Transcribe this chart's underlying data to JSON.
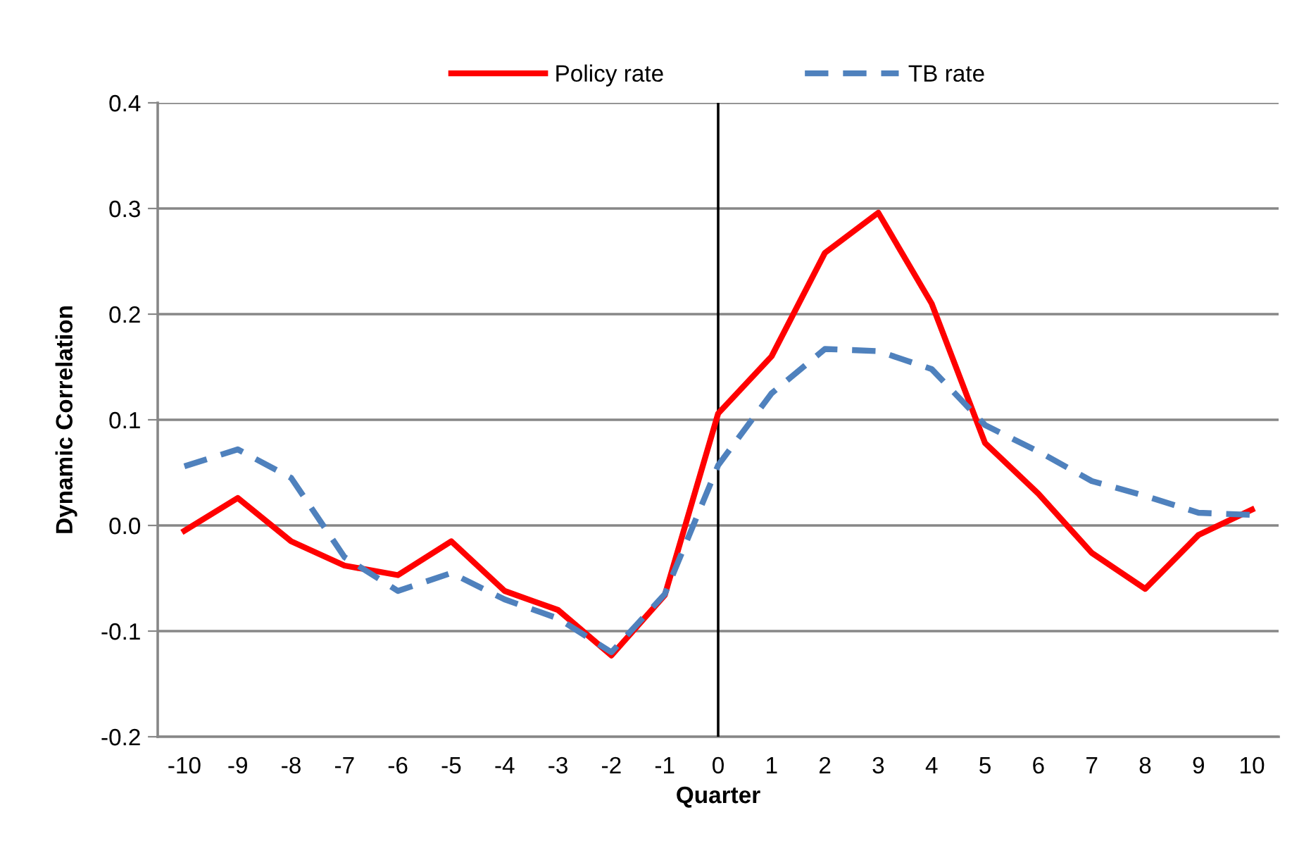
{
  "chart_data": {
    "type": "line",
    "xlabel": "Quarter",
    "ylabel": "Dynamic Correlation",
    "x": [
      -10,
      -9,
      -8,
      -7,
      -6,
      -5,
      -4,
      -3,
      -2,
      -1,
      0,
      1,
      2,
      3,
      4,
      5,
      6,
      7,
      8,
      9,
      10
    ],
    "series": [
      {
        "name": "Policy rate",
        "color": "#ff0000",
        "line_style": "solid",
        "values": [
          -0.005,
          0.026,
          -0.015,
          -0.038,
          -0.047,
          -0.015,
          -0.062,
          -0.08,
          -0.123,
          -0.066,
          0.106,
          0.16,
          0.258,
          0.296,
          0.21,
          0.078,
          0.03,
          -0.026,
          -0.06,
          -0.009,
          0.015
        ]
      },
      {
        "name": "TB rate",
        "color": "#4f81bd",
        "line_style": "dashed",
        "values": [
          0.056,
          0.072,
          0.045,
          -0.03,
          -0.062,
          -0.045,
          -0.07,
          -0.088,
          -0.12,
          -0.065,
          0.057,
          0.125,
          0.167,
          0.165,
          0.148,
          0.095,
          0.07,
          0.042,
          0.028,
          0.012,
          0.01
        ]
      }
    ],
    "xlim": [
      -10.5,
      10.5
    ],
    "xticks": [
      -10,
      -9,
      -8,
      -7,
      -6,
      -5,
      -4,
      -3,
      -2,
      -1,
      0,
      1,
      2,
      3,
      4,
      5,
      6,
      7,
      8,
      9,
      10
    ],
    "ylim": [
      -0.2,
      0.4
    ],
    "yticks": [
      {
        "value": -0.2,
        "label": "-0.2"
      },
      {
        "value": -0.1,
        "label": "-0.1"
      },
      {
        "value": 0,
        "label": "0.0"
      },
      {
        "value": 0.1,
        "label": "0.1"
      },
      {
        "value": 0.2,
        "label": "0.2"
      },
      {
        "value": 0.3,
        "label": "0.3"
      },
      {
        "value": 0.4,
        "label": "0.4"
      }
    ],
    "ref_lines": [
      {
        "axis": "x",
        "value": 0,
        "label": null,
        "color": "#000000"
      }
    ],
    "grid": "y",
    "legend": "top",
    "marker": "none"
  }
}
